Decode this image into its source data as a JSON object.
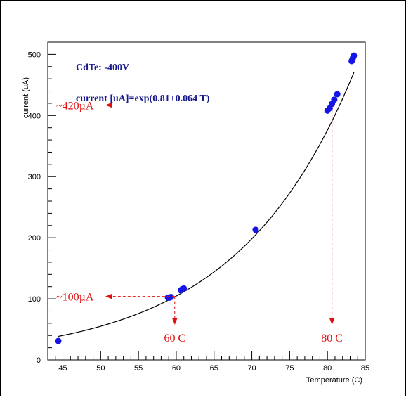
{
  "chart_data": {
    "type": "scatter",
    "title": "",
    "xlabel": "Temperature (C)",
    "ylabel": "current (uA)",
    "xlim": [
      43,
      85
    ],
    "ylim": [
      0,
      520
    ],
    "x_ticks": [
      45,
      50,
      55,
      60,
      65,
      70,
      75,
      80,
      85
    ],
    "y_ticks": [
      0,
      100,
      200,
      300,
      400,
      500
    ],
    "grid": false,
    "colors": {
      "points": "#1515e6",
      "fit": "#000000",
      "annotation": "#e01010",
      "label_text": "#1a1a8c"
    },
    "series": [
      {
        "x": [
          44.4,
          58.9,
          59.1,
          59.3,
          60.6,
          60.8,
          61.0,
          70.5,
          80.0,
          80.3,
          80.6,
          80.9,
          81.3,
          83.2,
          83.3,
          83.4,
          83.5
        ],
        "y": [
          31,
          102,
          102,
          103,
          114,
          116,
          117,
          213,
          408,
          412,
          419,
          426,
          435,
          489,
          492,
          495,
          498
        ]
      }
    ],
    "fit": {
      "label": "current [uA]=exp(0.81+0.064 T)",
      "a": 0.81,
      "b": 0.064,
      "x_range": [
        44.4,
        83.5
      ]
    },
    "annotations": [
      {
        "text": "~420µA",
        "x": 80.6,
        "y": 417,
        "arrow_to_y_axis": true,
        "arrow_to_x_axis": true,
        "x_label": "80 C"
      },
      {
        "text": "~100µA",
        "x": 59.8,
        "y": 104,
        "arrow_to_y_axis": true,
        "arrow_to_x_axis": true,
        "x_label": "60 C"
      }
    ],
    "header_label": "CdTe: -400V"
  }
}
